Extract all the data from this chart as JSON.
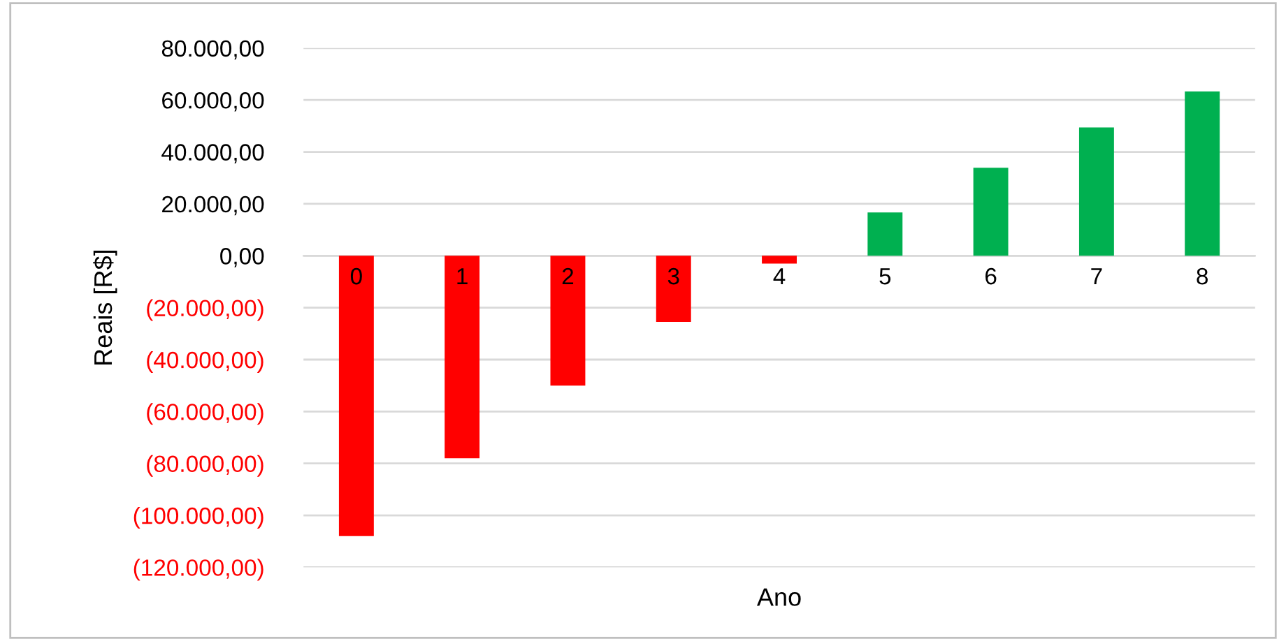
{
  "chart_data": {
    "type": "bar",
    "xlabel": "Ano",
    "ylabel": "Reais [R$]",
    "categories": [
      "0",
      "1",
      "2",
      "3",
      "4",
      "5",
      "6",
      "7",
      "8"
    ],
    "values": [
      -108000,
      -78000,
      -50000,
      -25500,
      -3000,
      16700,
      33900,
      49400,
      63300
    ],
    "colors": [
      "#ff0000",
      "#ff0000",
      "#ff0000",
      "#ff0000",
      "#ff0000",
      "#00b050",
      "#00b050",
      "#00b050",
      "#00b050"
    ],
    "ylim": [
      -120000,
      80000
    ],
    "yticks": [
      {
        "value": -120000,
        "label": "(120.000,00)"
      },
      {
        "value": -100000,
        "label": "(100.000,00)"
      },
      {
        "value": -80000,
        "label": "(80.000,00)"
      },
      {
        "value": -60000,
        "label": "(60.000,00)"
      },
      {
        "value": -40000,
        "label": "(40.000,00)"
      },
      {
        "value": -20000,
        "label": "(20.000,00)"
      },
      {
        "value": 0,
        "label": "0,00"
      },
      {
        "value": 20000,
        "label": "20.000,00"
      },
      {
        "value": 40000,
        "label": "40.000,00"
      },
      {
        "value": 60000,
        "label": "60.000,00"
      },
      {
        "value": 80000,
        "label": "80.000,00"
      }
    ],
    "grid": "y",
    "legend": false
  }
}
